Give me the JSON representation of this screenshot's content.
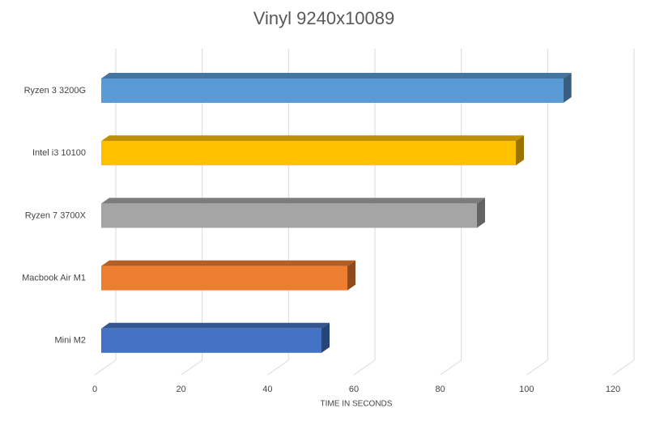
{
  "chart_data": {
    "type": "bar3d",
    "title": "Vinyl 9240x10089",
    "x_label": "TIME IN SECONDS",
    "categories": [
      "Ryzen 3 3200G",
      "Intel i3 10100",
      "Ryzen 7 3700X",
      "Macbook Air M1",
      "Mini M2"
    ],
    "values": [
      107,
      96,
      87,
      57,
      51
    ],
    "colors": [
      "#5b9bd5",
      "#ffc000",
      "#a5a5a5",
      "#ed7d31",
      "#4472c4"
    ],
    "xlim": [
      0,
      120
    ],
    "xticks": [
      0,
      20,
      40,
      60,
      80,
      100,
      120
    ],
    "grid": true
  }
}
